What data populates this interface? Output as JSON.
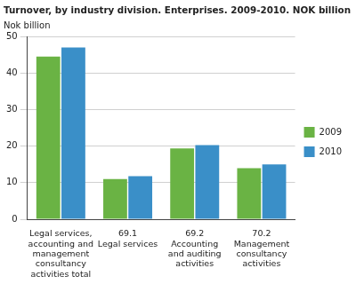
{
  "chart_data": {
    "type": "bar",
    "title": "Turnover, by industry division. Enterprises. 2009-2010. NOK billion",
    "ylabel": "Nok billion",
    "categories": [
      [
        "Legal services,",
        "accounting and",
        "management",
        "consultancy",
        "activities total"
      ],
      [
        "69.1",
        "Legal services"
      ],
      [
        "69.2",
        "Accounting",
        "and auditing",
        "activities"
      ],
      [
        "70.2",
        "Management",
        "consultancy",
        "activities"
      ]
    ],
    "series": [
      {
        "name": "2009",
        "color": "#6ab344",
        "values": [
          44.5,
          11,
          19.4,
          14
        ]
      },
      {
        "name": "2010",
        "color": "#3a8fc8",
        "values": [
          47,
          11.8,
          20.3,
          15
        ]
      }
    ],
    "ylim": [
      0,
      50
    ],
    "yticks": [
      0,
      10,
      20,
      30,
      40,
      50
    ],
    "grid": true,
    "legend": "right"
  }
}
